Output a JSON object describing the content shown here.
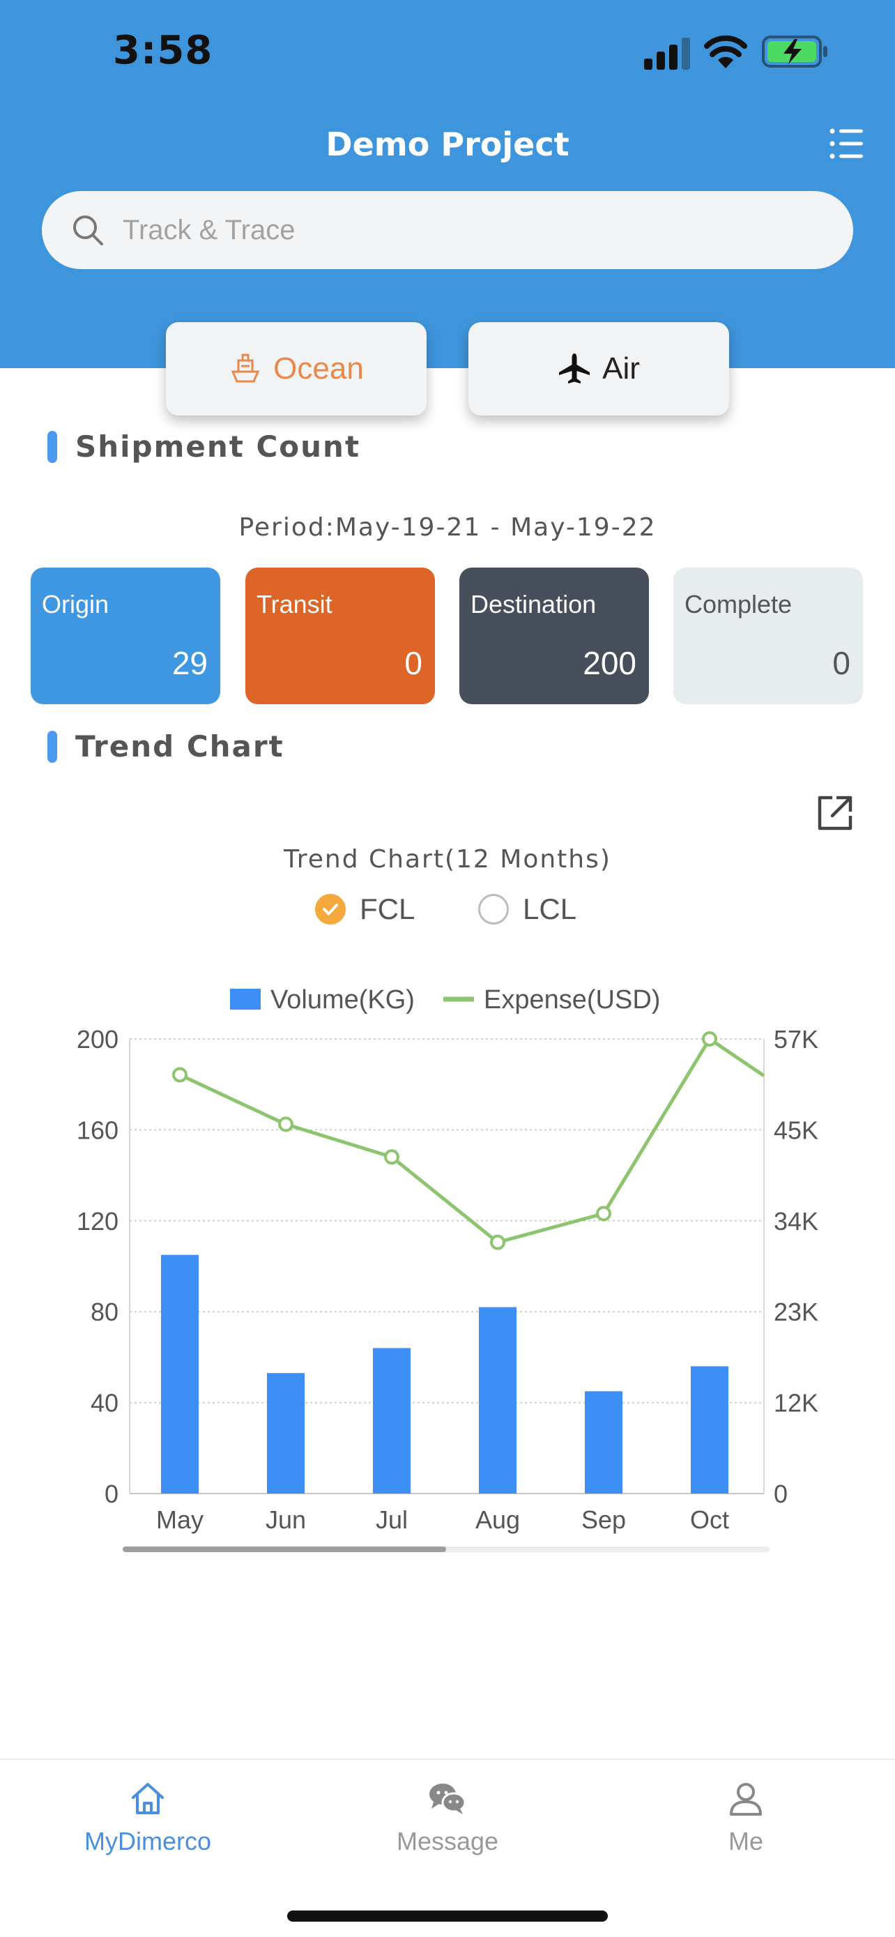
{
  "status_bar": {
    "time": "3:58"
  },
  "header": {
    "title": "Demo Project",
    "search_placeholder": "Track & Trace"
  },
  "modes": {
    "ocean": "Ocean",
    "air": "Air",
    "selected": "Ocean"
  },
  "shipment": {
    "section_title": "Shipment Count",
    "period": "Period:May-19-21 - May-19-22",
    "cards": [
      {
        "label": "Origin",
        "value": "29",
        "color": "#3f97e2"
      },
      {
        "label": "Transit",
        "value": "0",
        "color": "#dc6527"
      },
      {
        "label": "Destination",
        "value": "200",
        "color": "#474f5c"
      },
      {
        "label": "Complete",
        "value": "0",
        "color": "#e7ecee"
      }
    ]
  },
  "trend": {
    "section_title": "Trend Chart",
    "subtitle": "Trend Chart(12 Months)",
    "filters": [
      {
        "label": "FCL",
        "checked": true
      },
      {
        "label": "LCL",
        "checked": false
      }
    ]
  },
  "chart_data": {
    "type": "bar",
    "categories": [
      "May",
      "Jun",
      "Jul",
      "Aug",
      "Sep",
      "Oct"
    ],
    "series": [
      {
        "name": "Volume(KG)",
        "type": "bar",
        "axis": "left",
        "color": "#3d8ff5",
        "values": [
          105,
          53,
          64,
          82,
          45,
          56
        ]
      },
      {
        "name": "Expense(USD)",
        "type": "line",
        "axis": "right",
        "color": "#8cc56d",
        "values": [
          52500,
          46300,
          42200,
          31500,
          35100,
          57000
        ]
      }
    ],
    "trailing_point": {
      "series": "Expense(USD)",
      "value": 48000
    },
    "left_axis": {
      "ticks": [
        "0",
        "40",
        "80",
        "120",
        "160",
        "200"
      ],
      "ylim": [
        0,
        200
      ]
    },
    "right_axis": {
      "ticks": [
        "0",
        "12K",
        "23K",
        "34K",
        "45K",
        "57K"
      ],
      "ylim": [
        0,
        57000
      ]
    },
    "legend_position": "top-center",
    "grid": true,
    "scrollbar_fraction": 0.5
  },
  "tabbar": {
    "items": [
      {
        "label": "MyDimerco",
        "icon": "home-icon",
        "active": true
      },
      {
        "label": "Message",
        "icon": "chat-bubbles-icon",
        "active": false
      },
      {
        "label": "Me",
        "icon": "person-icon",
        "active": false
      }
    ]
  },
  "colors": {
    "header": "#3f95dc",
    "accent": "#4a9af0",
    "ocean": "#e8894b"
  }
}
